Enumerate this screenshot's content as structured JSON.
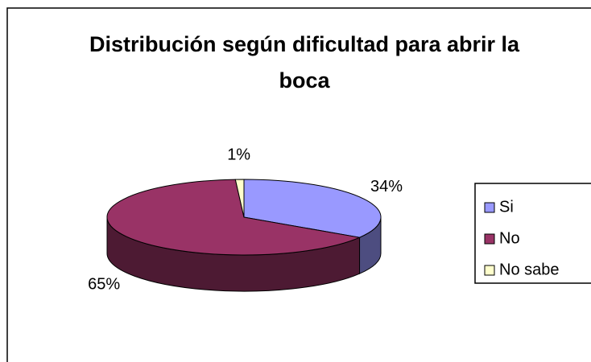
{
  "chart_data": {
    "type": "pie",
    "title": "Distribución según dificultad para abrir la boca",
    "categories": [
      "Si",
      "No",
      "No sabe"
    ],
    "values": [
      34,
      65,
      1
    ],
    "value_labels": [
      "34%",
      "65%",
      "1%"
    ],
    "colors": [
      "#9999ff",
      "#993366",
      "#ffffcc"
    ],
    "legend": "right"
  }
}
